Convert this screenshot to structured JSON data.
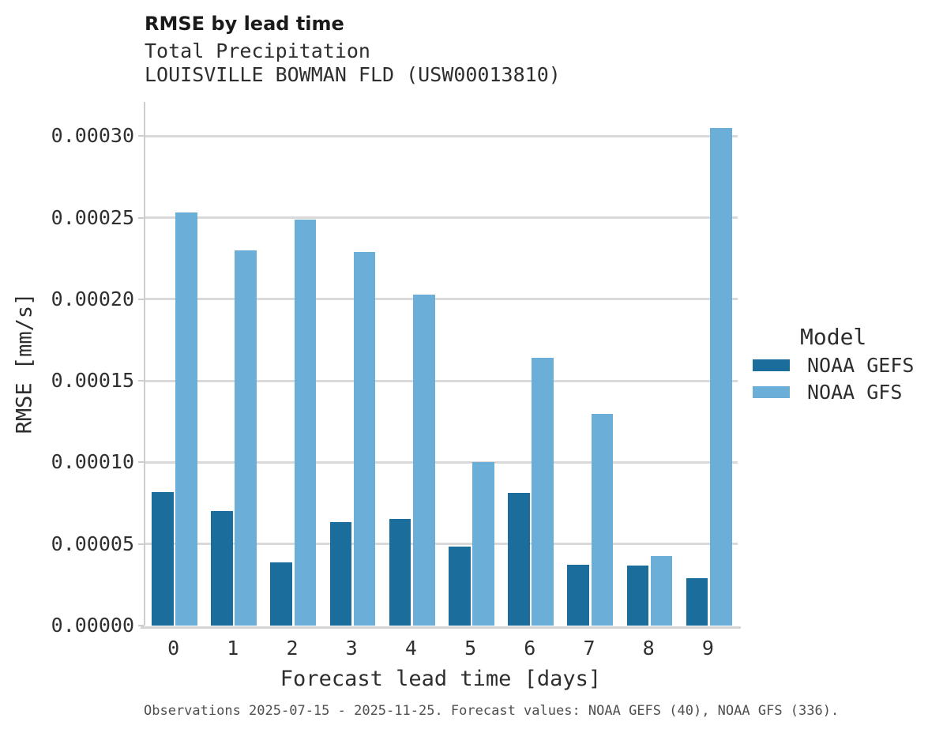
{
  "caption": "Observations 2025-07-15 - 2025-11-25. Forecast values: NOAA GEFS (40), NOAA GFS (336).",
  "chart_data": {
    "type": "bar",
    "title": "RMSE by lead time",
    "subtitle": "Total Precipitation",
    "station": "LOUISVILLE BOWMAN FLD (USW00013810)",
    "xlabel": "Forecast lead time [days]",
    "ylabel": "RMSE [mm/s]",
    "categories": [
      "0",
      "1",
      "2",
      "3",
      "4",
      "5",
      "6",
      "7",
      "8",
      "9"
    ],
    "series": [
      {
        "name": "NOAA GEFS",
        "color": "#1b6d9c",
        "values": [
          8.2e-05,
          7e-05,
          3.85e-05,
          6.35e-05,
          6.55e-05,
          4.84e-05,
          8.12e-05,
          3.75e-05,
          3.7e-05,
          2.9e-05
        ]
      },
      {
        "name": "NOAA GFS",
        "color": "#6bafd8",
        "values": [
          0.000253,
          0.00023,
          0.000249,
          0.000229,
          0.000203,
          0.0001,
          0.000164,
          0.00013,
          4.24e-05,
          0.000305
        ]
      }
    ],
    "yticks": [
      "0.00000",
      "0.00005",
      "0.00010",
      "0.00015",
      "0.00020",
      "0.00025",
      "0.00030"
    ],
    "ylim": [
      0,
      0.000321
    ],
    "grid": true,
    "legend": {
      "title": "Model",
      "position": "right"
    }
  }
}
